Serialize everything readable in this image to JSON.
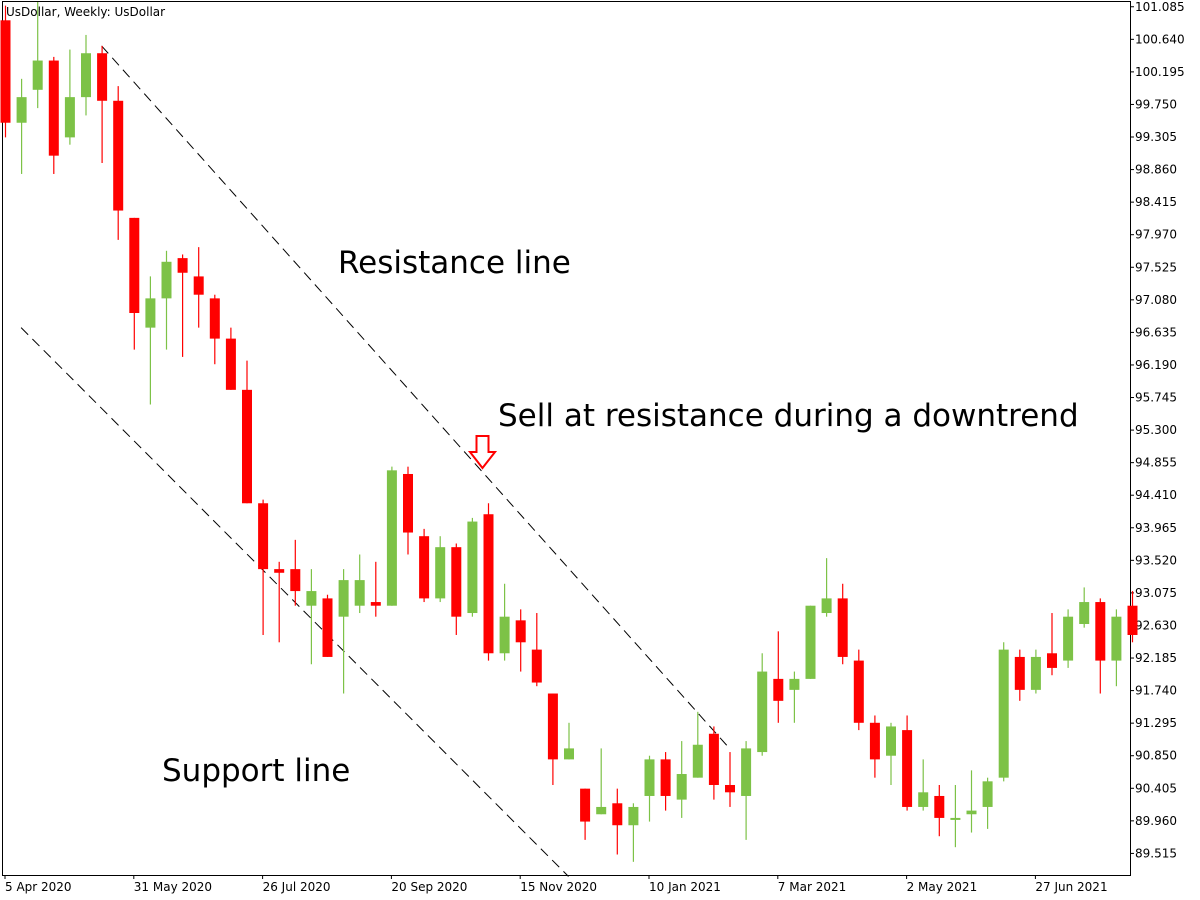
{
  "chart_data": {
    "type": "candlestick",
    "symbol_label": "UsDollar, Weekly:  UsDollar",
    "ylim": [
      89.22,
      101.15
    ],
    "colors": {
      "bull": "#7dc247",
      "bear": "#ff0000",
      "wick": "#000000",
      "axis": "#000000",
      "trendline": "#000000",
      "arrow": "#ff0000"
    },
    "y_ticks": [
      "101.085",
      "100.640",
      "100.195",
      "99.750",
      "99.305",
      "98.860",
      "98.415",
      "97.970",
      "97.525",
      "97.080",
      "96.635",
      "96.190",
      "95.745",
      "95.300",
      "94.855",
      "94.410",
      "93.965",
      "93.520",
      "93.075",
      "92.630",
      "92.185",
      "91.740",
      "91.295",
      "90.850",
      "90.405",
      "89.960",
      "89.515"
    ],
    "x_ticks": [
      {
        "index": 0,
        "label": "5 Apr 2020"
      },
      {
        "index": 8,
        "label": "31 May 2020"
      },
      {
        "index": 16,
        "label": "26 Jul 2020"
      },
      {
        "index": 24,
        "label": "20 Sep 2020"
      },
      {
        "index": 32,
        "label": "15 Nov 2020"
      },
      {
        "index": 40,
        "label": "10 Jan 2021"
      },
      {
        "index": 48,
        "label": "7 Mar 2021"
      },
      {
        "index": 56,
        "label": "2 May 2021"
      },
      {
        "index": 64,
        "label": "27 Jun 2021"
      }
    ],
    "candles": [
      {
        "o": 100.9,
        "h": 101.1,
        "l": 99.3,
        "c": 99.5
      },
      {
        "o": 99.5,
        "h": 100.1,
        "l": 98.8,
        "c": 99.85
      },
      {
        "o": 99.95,
        "h": 101.15,
        "l": 99.7,
        "c": 100.35
      },
      {
        "o": 100.35,
        "h": 100.4,
        "l": 98.8,
        "c": 99.05
      },
      {
        "o": 99.3,
        "h": 100.5,
        "l": 99.2,
        "c": 99.85
      },
      {
        "o": 99.85,
        "h": 100.7,
        "l": 99.6,
        "c": 100.45
      },
      {
        "o": 100.45,
        "h": 100.55,
        "l": 98.95,
        "c": 99.8
      },
      {
        "o": 99.8,
        "h": 100.0,
        "l": 97.9,
        "c": 98.3
      },
      {
        "o": 98.2,
        "h": 98.2,
        "l": 96.4,
        "c": 96.9
      },
      {
        "o": 96.7,
        "h": 97.4,
        "l": 95.65,
        "c": 97.1
      },
      {
        "o": 97.1,
        "h": 97.75,
        "l": 96.4,
        "c": 97.6
      },
      {
        "o": 97.65,
        "h": 97.7,
        "l": 96.3,
        "c": 97.45
      },
      {
        "o": 97.4,
        "h": 97.8,
        "l": 96.7,
        "c": 97.15
      },
      {
        "o": 97.1,
        "h": 97.15,
        "l": 96.2,
        "c": 96.55
      },
      {
        "o": 96.55,
        "h": 96.7,
        "l": 95.85,
        "c": 95.85
      },
      {
        "o": 95.85,
        "h": 96.25,
        "l": 94.3,
        "c": 94.3
      },
      {
        "o": 94.3,
        "h": 94.35,
        "l": 92.5,
        "c": 93.4
      },
      {
        "o": 93.4,
        "h": 93.5,
        "l": 92.4,
        "c": 93.35
      },
      {
        "o": 93.4,
        "h": 93.8,
        "l": 92.9,
        "c": 93.1
      },
      {
        "o": 92.9,
        "h": 93.4,
        "l": 92.1,
        "c": 93.1
      },
      {
        "o": 93.0,
        "h": 93.05,
        "l": 92.2,
        "c": 92.2
      },
      {
        "o": 92.75,
        "h": 93.4,
        "l": 91.7,
        "c": 93.25
      },
      {
        "o": 92.9,
        "h": 93.6,
        "l": 92.8,
        "c": 93.25
      },
      {
        "o": 92.95,
        "h": 93.5,
        "l": 92.75,
        "c": 92.9
      },
      {
        "o": 92.9,
        "h": 94.8,
        "l": 92.9,
        "c": 94.75
      },
      {
        "o": 94.7,
        "h": 94.8,
        "l": 93.6,
        "c": 93.9
      },
      {
        "o": 93.85,
        "h": 93.95,
        "l": 92.95,
        "c": 93.0
      },
      {
        "o": 93.0,
        "h": 93.85,
        "l": 92.95,
        "c": 93.7
      },
      {
        "o": 93.7,
        "h": 93.75,
        "l": 92.5,
        "c": 92.75
      },
      {
        "o": 92.8,
        "h": 94.1,
        "l": 92.75,
        "c": 94.05
      },
      {
        "o": 94.15,
        "h": 94.3,
        "l": 92.15,
        "c": 92.25
      },
      {
        "o": 92.25,
        "h": 93.2,
        "l": 92.15,
        "c": 92.75
      },
      {
        "o": 92.7,
        "h": 92.85,
        "l": 92.0,
        "c": 92.4
      },
      {
        "o": 92.3,
        "h": 92.8,
        "l": 91.8,
        "c": 91.85
      },
      {
        "o": 91.7,
        "h": 91.7,
        "l": 90.45,
        "c": 90.8
      },
      {
        "o": 90.8,
        "h": 91.3,
        "l": 90.8,
        "c": 90.95
      },
      {
        "o": 90.4,
        "h": 90.4,
        "l": 89.7,
        "c": 89.95
      },
      {
        "o": 90.05,
        "h": 90.95,
        "l": 90.05,
        "c": 90.15
      },
      {
        "o": 90.2,
        "h": 90.4,
        "l": 89.5,
        "c": 89.9
      },
      {
        "o": 89.9,
        "h": 90.2,
        "l": 89.4,
        "c": 90.15
      },
      {
        "o": 90.3,
        "h": 90.85,
        "l": 89.95,
        "c": 90.8
      },
      {
        "o": 90.8,
        "h": 90.9,
        "l": 90.1,
        "c": 90.3
      },
      {
        "o": 90.25,
        "h": 91.05,
        "l": 90.0,
        "c": 90.6
      },
      {
        "o": 90.55,
        "h": 91.45,
        "l": 90.55,
        "c": 91.0
      },
      {
        "o": 91.15,
        "h": 91.25,
        "l": 90.25,
        "c": 90.45
      },
      {
        "o": 90.45,
        "h": 90.9,
        "l": 90.15,
        "c": 90.35
      },
      {
        "o": 90.3,
        "h": 91.05,
        "l": 89.7,
        "c": 90.95
      },
      {
        "o": 90.9,
        "h": 92.25,
        "l": 90.85,
        "c": 92.0
      },
      {
        "o": 91.9,
        "h": 92.55,
        "l": 91.3,
        "c": 91.6
      },
      {
        "o": 91.75,
        "h": 92.0,
        "l": 91.3,
        "c": 91.9
      },
      {
        "o": 91.9,
        "h": 92.9,
        "l": 91.9,
        "c": 92.9
      },
      {
        "o": 92.8,
        "h": 93.55,
        "l": 92.75,
        "c": 93.0
      },
      {
        "o": 93.0,
        "h": 93.2,
        "l": 92.1,
        "c": 92.2
      },
      {
        "o": 92.15,
        "h": 92.3,
        "l": 91.2,
        "c": 91.3
      },
      {
        "o": 91.3,
        "h": 91.4,
        "l": 90.55,
        "c": 90.8
      },
      {
        "o": 90.85,
        "h": 91.3,
        "l": 90.45,
        "c": 91.25
      },
      {
        "o": 91.2,
        "h": 91.4,
        "l": 90.1,
        "c": 90.15
      },
      {
        "o": 90.15,
        "h": 90.8,
        "l": 90.1,
        "c": 90.35
      },
      {
        "o": 90.3,
        "h": 90.45,
        "l": 89.75,
        "c": 90.0
      },
      {
        "o": 90.0,
        "h": 90.45,
        "l": 89.6,
        "c": 90.0
      },
      {
        "o": 90.05,
        "h": 90.65,
        "l": 89.8,
        "c": 90.1
      },
      {
        "o": 90.15,
        "h": 90.55,
        "l": 89.85,
        "c": 90.5
      },
      {
        "o": 90.55,
        "h": 92.4,
        "l": 90.5,
        "c": 92.3
      },
      {
        "o": 92.2,
        "h": 92.3,
        "l": 91.6,
        "c": 91.75
      },
      {
        "o": 91.75,
        "h": 92.3,
        "l": 91.7,
        "c": 92.2
      },
      {
        "o": 92.25,
        "h": 92.8,
        "l": 91.95,
        "c": 92.05
      },
      {
        "o": 92.15,
        "h": 92.85,
        "l": 92.05,
        "c": 92.75
      },
      {
        "o": 92.65,
        "h": 93.15,
        "l": 92.6,
        "c": 92.95
      },
      {
        "o": 92.95,
        "h": 93.0,
        "l": 91.7,
        "c": 92.15
      },
      {
        "o": 92.15,
        "h": 92.85,
        "l": 91.8,
        "c": 92.75
      },
      {
        "o": 92.9,
        "h": 93.1,
        "l": 92.4,
        "c": 92.5
      }
    ],
    "trendlines": [
      {
        "name": "resistance",
        "from": {
          "index": 6,
          "price": 100.55
        },
        "to": {
          "index": 45,
          "price": 90.95
        }
      },
      {
        "name": "support",
        "from": {
          "index": 1,
          "price": 96.7
        },
        "to": {
          "index": 35,
          "price": 89.2
        }
      }
    ],
    "annotations": [
      {
        "text": "Resistance line"
      },
      {
        "text": "Sell at resistance during a downtrend"
      },
      {
        "text": "Support line"
      }
    ]
  }
}
